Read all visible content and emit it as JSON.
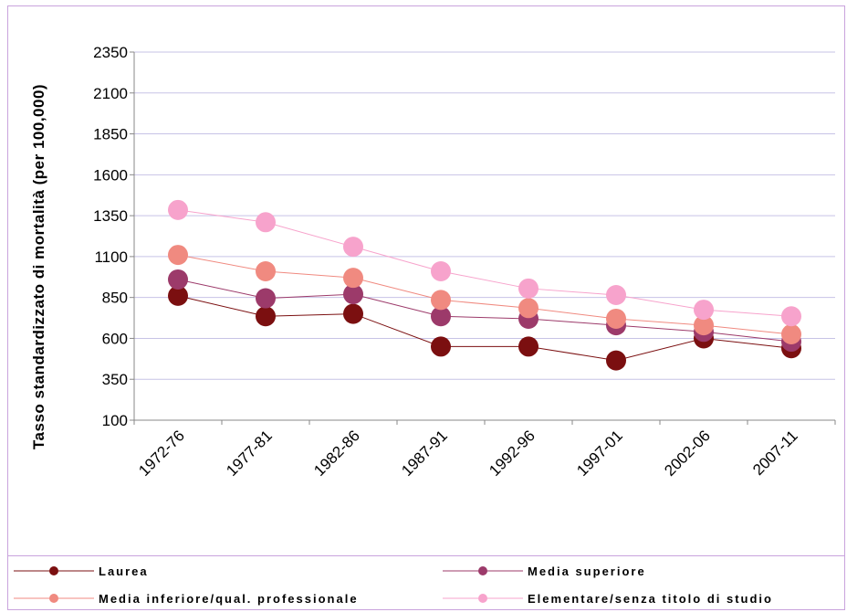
{
  "chart_data": {
    "type": "line",
    "title": "",
    "xlabel": "",
    "ylabel": "Tasso standardizzato di mortalità (per 100,000)",
    "ylim": [
      100,
      2350
    ],
    "yticks": [
      "100",
      "350",
      "600",
      "850",
      "1100",
      "1350",
      "1600",
      "1850",
      "2100",
      "2350"
    ],
    "categories": [
      "1972-76",
      "1977-81",
      "1982-86",
      "1987-91",
      "1992-96",
      "1997-01",
      "2002-06",
      "2007-11"
    ],
    "grid": "horizontal",
    "legend_position": "bottom",
    "series": [
      {
        "name": "Laurea",
        "color": "#7b0f10",
        "values": [
          860,
          735,
          750,
          550,
          550,
          465,
          600,
          540
        ]
      },
      {
        "name": "Media superiore",
        "color": "#9c3a6a",
        "values": [
          960,
          845,
          870,
          735,
          720,
          680,
          640,
          580
        ]
      },
      {
        "name": "Media inferiore/qual. professionale",
        "color": "#f08a80",
        "values": [
          1110,
          1010,
          970,
          835,
          785,
          720,
          680,
          625
        ]
      },
      {
        "name": "Elementare/senza titolo di studio",
        "color": "#f7a3cc",
        "values": [
          1385,
          1310,
          1160,
          1010,
          905,
          865,
          775,
          735
        ]
      }
    ]
  }
}
